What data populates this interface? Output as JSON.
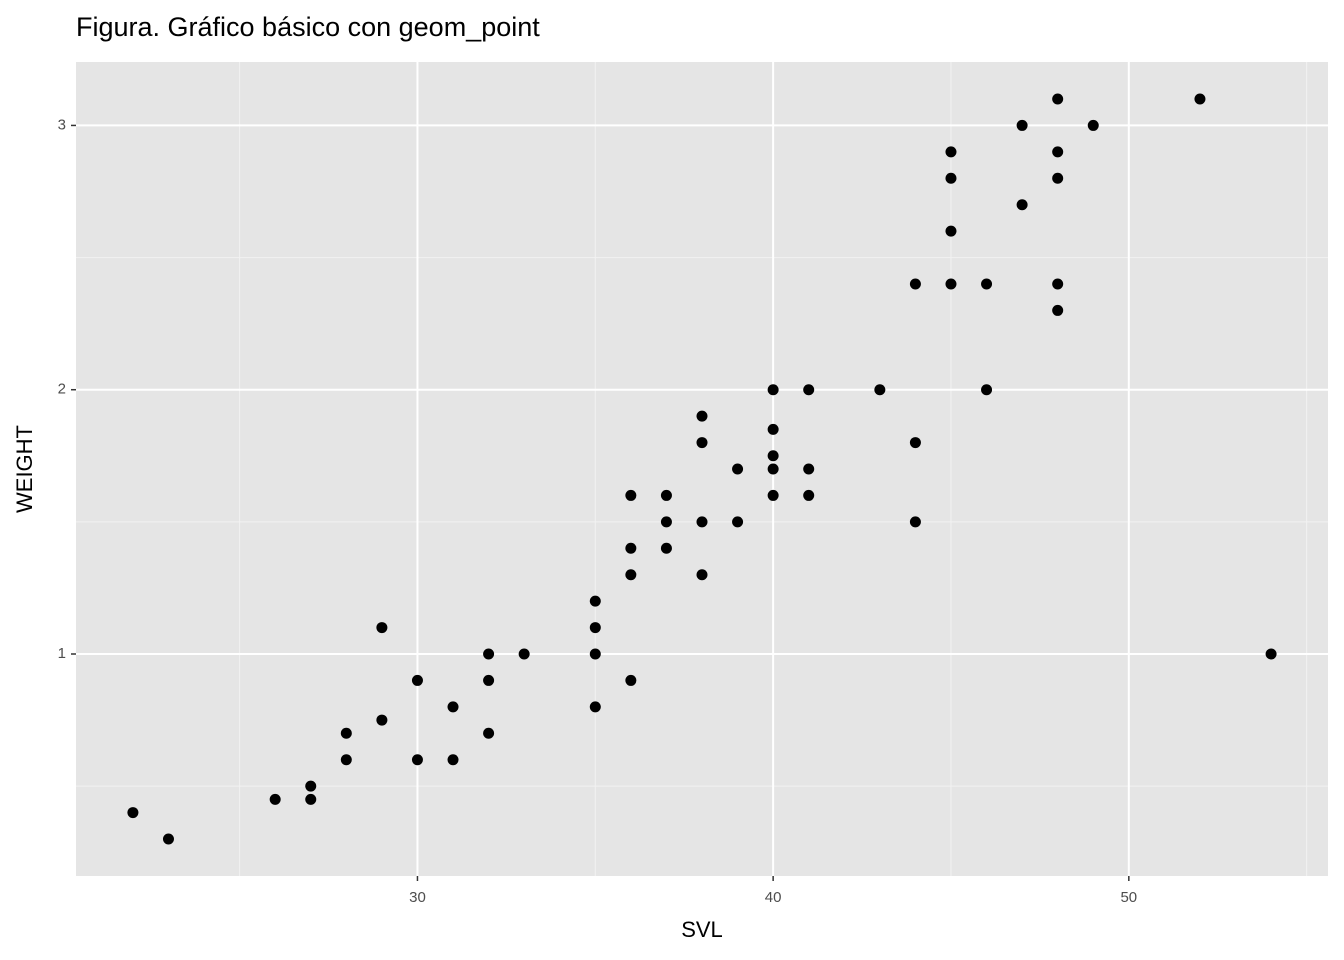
{
  "chart_data": {
    "type": "scatter",
    "title": "Figura. Gráfico básico con geom_point",
    "x_label": "SVL",
    "y_label": "WEIGHT",
    "xlim": [
      20.4,
      55.6
    ],
    "ylim": [
      0.16,
      3.24
    ],
    "xticks": [
      30,
      40,
      50
    ],
    "yticks": [
      1,
      2,
      3
    ],
    "xminor": [
      25,
      35,
      45,
      55
    ],
    "yminor": [
      0.5,
      1.5,
      2.5
    ],
    "grid": true,
    "color": "#000000",
    "x": [
      22,
      23,
      26,
      27,
      27,
      28,
      28,
      29,
      29,
      30,
      30,
      31,
      31,
      32,
      32,
      32,
      33,
      35,
      35,
      35,
      35,
      36,
      36,
      36,
      36,
      37,
      37,
      37,
      38,
      38,
      38,
      38,
      39,
      39,
      40,
      40,
      40,
      40,
      40,
      41,
      41,
      41,
      43,
      44,
      44,
      44,
      45,
      45,
      45,
      45,
      46,
      46,
      47,
      47,
      48,
      48,
      48,
      48,
      48,
      49,
      52,
      54
    ],
    "values": [
      0.4,
      0.3,
      0.45,
      0.5,
      0.45,
      0.7,
      0.6,
      1.1,
      0.75,
      0.9,
      0.6,
      0.8,
      0.6,
      1.0,
      0.9,
      0.7,
      1.0,
      1.2,
      1.1,
      1.0,
      0.8,
      1.6,
      1.4,
      1.3,
      0.9,
      1.6,
      1.5,
      1.4,
      1.9,
      1.8,
      1.5,
      1.3,
      1.7,
      1.5,
      2.0,
      1.85,
      1.75,
      1.7,
      1.6,
      2.0,
      1.7,
      1.6,
      2.0,
      2.4,
      1.8,
      1.5,
      2.9,
      2.8,
      2.6,
      2.4,
      2.4,
      2.0,
      3.0,
      2.7,
      3.1,
      2.9,
      2.8,
      2.4,
      2.3,
      3.0,
      3.1,
      1.0
    ]
  }
}
